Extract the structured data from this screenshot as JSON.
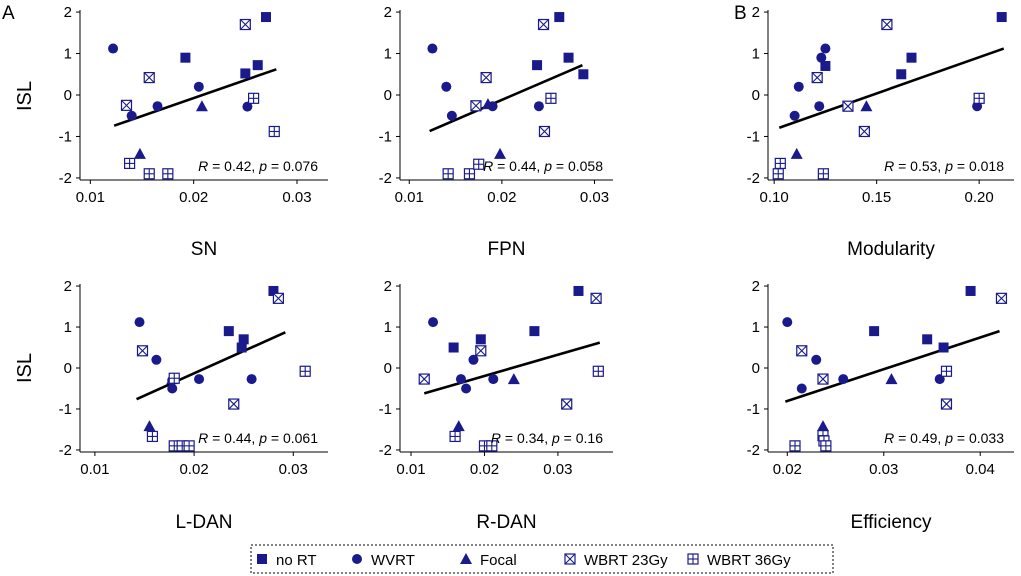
{
  "colors": {
    "marker": "#1a1a8c",
    "line": "#000000"
  },
  "legend": {
    "items": [
      {
        "label": "no RT",
        "shape": "square"
      },
      {
        "label": "WVRT",
        "shape": "circle"
      },
      {
        "label": "Focal",
        "shape": "triangle"
      },
      {
        "label": "WBRT 23Gy",
        "shape": "boxx"
      },
      {
        "label": "WBRT 36Gy",
        "shape": "boxplus"
      }
    ]
  },
  "panel_letters": [
    "A",
    "B"
  ],
  "chart_data": [
    {
      "type": "scatter",
      "title": "",
      "xlabel": "SN",
      "ylabel": "ISL",
      "xlim": [
        0.009,
        0.033
      ],
      "ylim": [
        -2.05,
        2.05
      ],
      "xticks": [
        0.01,
        0.02,
        0.03
      ],
      "xtick_labels": [
        "0.01",
        "0.02",
        "0.03"
      ],
      "yticks": [
        -2,
        -1,
        0,
        1,
        2
      ],
      "ytick_labels": [
        "-2",
        "-1",
        "0",
        "1",
        "2"
      ],
      "stat_r": "0.42",
      "stat_p": "0.076",
      "stat_rest": ", p = 0.076",
      "fit": {
        "x": [
          0.0123,
          0.028
        ],
        "y": [
          -0.74,
          0.62
        ]
      },
      "series": [
        {
          "name": "no RT",
          "x": [
            0.0192,
            0.027,
            0.0262,
            0.025
          ],
          "y": [
            0.9,
            1.88,
            0.72,
            0.52
          ]
        },
        {
          "name": "WVRT",
          "x": [
            0.0122,
            0.014,
            0.0165,
            0.0205,
            0.0252
          ],
          "y": [
            1.12,
            -0.5,
            -0.27,
            0.2,
            -0.28
          ]
        },
        {
          "name": "Focal",
          "x": [
            0.0148,
            0.0208
          ],
          "y": [
            -1.42,
            -0.27
          ]
        },
        {
          "name": "WBRT 23Gy",
          "x": [
            0.0135,
            0.0157,
            0.025
          ],
          "y": [
            -0.25,
            0.42,
            1.7
          ]
        },
        {
          "name": "WBRT 36Gy",
          "x": [
            0.0138,
            0.0157,
            0.0175,
            0.0258,
            0.0278
          ],
          "y": [
            -1.65,
            -1.9,
            -1.9,
            -0.08,
            -0.88
          ]
        }
      ]
    },
    {
      "type": "scatter",
      "title": "",
      "xlabel": "FPN",
      "ylabel": "",
      "xlim": [
        0.009,
        0.032
      ],
      "ylim": [
        -2.05,
        2.05
      ],
      "xticks": [
        0.01,
        0.02,
        0.03
      ],
      "xtick_labels": [
        "0.01",
        "0.02",
        "0.03"
      ],
      "yticks": [
        -2,
        -1,
        0,
        1,
        2
      ],
      "ytick_labels": [
        "-2",
        "-1",
        "0",
        "1",
        "2"
      ],
      "stat_r": "0.44",
      "stat_p": "0.058",
      "stat_rest": ", p = 0.058",
      "fit": {
        "x": [
          0.0122,
          0.0287
        ],
        "y": [
          -0.87,
          0.72
        ]
      },
      "series": [
        {
          "name": "no RT",
          "x": [
            0.0238,
            0.0262,
            0.0272,
            0.0288
          ],
          "y": [
            0.72,
            1.88,
            0.9,
            0.5
          ]
        },
        {
          "name": "WVRT",
          "x": [
            0.0125,
            0.014,
            0.0146,
            0.019,
            0.024
          ],
          "y": [
            1.12,
            0.2,
            -0.5,
            -0.27,
            -0.27
          ]
        },
        {
          "name": "Focal",
          "x": [
            0.0185,
            0.0198
          ],
          "y": [
            -0.22,
            -1.42
          ]
        },
        {
          "name": "WBRT 23Gy",
          "x": [
            0.0172,
            0.0183,
            0.0245,
            0.0246
          ],
          "y": [
            -0.26,
            0.42,
            1.7,
            -0.88
          ]
        },
        {
          "name": "WBRT 36Gy",
          "x": [
            0.0142,
            0.0165,
            0.0175,
            0.0253
          ],
          "y": [
            -1.9,
            -1.9,
            -1.67,
            -0.08
          ]
        }
      ]
    },
    {
      "type": "scatter",
      "title": "",
      "xlabel": "Modularity",
      "ylabel": "",
      "xlim": [
        0.097,
        0.217
      ],
      "ylim": [
        -2.05,
        2.05
      ],
      "xticks": [
        0.1,
        0.15,
        0.2
      ],
      "xtick_labels": [
        "0.10",
        "0.15",
        "0.20"
      ],
      "yticks": [
        -2,
        -1,
        0,
        1,
        2
      ],
      "ytick_labels": [
        "-2",
        "-1",
        "0",
        "1",
        "2"
      ],
      "stat_r": "0.53",
      "stat_p": "0.018",
      "stat_rest": ", p = 0.018",
      "fit": {
        "x": [
          0.1025,
          0.212
        ],
        "y": [
          -0.79,
          1.12
        ]
      },
      "series": [
        {
          "name": "no RT",
          "x": [
            0.125,
            0.162,
            0.167,
            0.211
          ],
          "y": [
            0.7,
            0.5,
            0.9,
            1.88
          ]
        },
        {
          "name": "WVRT",
          "x": [
            0.11,
            0.112,
            0.122,
            0.123,
            0.125,
            0.199
          ],
          "y": [
            -0.5,
            0.2,
            -0.27,
            0.9,
            1.12,
            -0.27
          ]
        },
        {
          "name": "Focal",
          "x": [
            0.111,
            0.145
          ],
          "y": [
            -1.42,
            -0.27
          ]
        },
        {
          "name": "WBRT 23Gy",
          "x": [
            0.121,
            0.136,
            0.144,
            0.155
          ],
          "y": [
            0.42,
            -0.27,
            -0.88,
            1.7
          ]
        },
        {
          "name": "WBRT 36Gy",
          "x": [
            0.102,
            0.103,
            0.124,
            0.2
          ],
          "y": [
            -1.9,
            -1.65,
            -1.9,
            -0.08
          ]
        }
      ]
    },
    {
      "type": "scatter",
      "title": "",
      "xlabel": "L-DAN",
      "ylabel": "ISL",
      "xlim": [
        0.0085,
        0.0335
      ],
      "ylim": [
        -2.05,
        2.05
      ],
      "xticks": [
        0.01,
        0.02,
        0.03
      ],
      "xtick_labels": [
        "0.01",
        "0.02",
        "0.03"
      ],
      "yticks": [
        -2,
        -1,
        0,
        1,
        2
      ],
      "ytick_labels": [
        "-2",
        "-1",
        "0",
        "1",
        "2"
      ],
      "stat_r": "0.44",
      "stat_p": "0.061",
      "stat_rest": ", p = 0.061",
      "fit": {
        "x": [
          0.0142,
          0.0292
        ],
        "y": [
          -0.76,
          0.87
        ]
      },
      "series": [
        {
          "name": "no RT",
          "x": [
            0.0235,
            0.025,
            0.0248,
            0.028
          ],
          "y": [
            0.9,
            0.7,
            0.5,
            1.88
          ]
        },
        {
          "name": "WVRT",
          "x": [
            0.0145,
            0.0162,
            0.0178,
            0.0178,
            0.0205,
            0.0258
          ],
          "y": [
            1.12,
            0.2,
            -0.5,
            -0.3,
            -0.27,
            -0.27
          ]
        },
        {
          "name": "Focal",
          "x": [
            0.0155,
            0.0178
          ],
          "y": [
            -1.42,
            -0.27
          ]
        },
        {
          "name": "WBRT 23Gy",
          "x": [
            0.0148,
            0.024,
            0.0285
          ],
          "y": [
            0.42,
            -0.88,
            1.7
          ]
        },
        {
          "name": "WBRT 36Gy",
          "x": [
            0.0158,
            0.018,
            0.0188,
            0.0195,
            0.018,
            0.0312
          ],
          "y": [
            -1.67,
            -1.9,
            -1.9,
            -1.9,
            -0.25,
            -0.08
          ]
        }
      ]
    },
    {
      "type": "scatter",
      "title": "",
      "xlabel": "R-DAN",
      "ylabel": "",
      "xlim": [
        0.0085,
        0.0375
      ],
      "ylim": [
        -2.05,
        2.05
      ],
      "xticks": [
        0.01,
        0.02,
        0.03
      ],
      "xtick_labels": [
        "0.01",
        "0.02",
        "0.03"
      ],
      "yticks": [
        -2,
        -1,
        0,
        1,
        2
      ],
      "ytick_labels": [
        "-2",
        "-1",
        "0",
        "1",
        "2"
      ],
      "stat_r": "0.34",
      "stat_p": "0.16",
      "stat_rest": ", p = 0.16",
      "fit": {
        "x": [
          0.0118,
          0.0357
        ],
        "y": [
          -0.62,
          0.62
        ]
      },
      "series": [
        {
          "name": "no RT",
          "x": [
            0.0158,
            0.0195,
            0.0268,
            0.0328
          ],
          "y": [
            0.5,
            0.7,
            0.9,
            1.88
          ]
        },
        {
          "name": "WVRT",
          "x": [
            0.013,
            0.0168,
            0.0175,
            0.0185,
            0.0212
          ],
          "y": [
            1.12,
            -0.27,
            -0.5,
            0.2,
            -0.27
          ]
        },
        {
          "name": "Focal",
          "x": [
            0.0165,
            0.024
          ],
          "y": [
            -1.42,
            -0.27
          ]
        },
        {
          "name": "WBRT 23Gy",
          "x": [
            0.0118,
            0.0195,
            0.0312,
            0.0352
          ],
          "y": [
            -0.27,
            0.42,
            -0.88,
            1.7
          ]
        },
        {
          "name": "WBRT 36Gy",
          "x": [
            0.016,
            0.02,
            0.021,
            0.0355
          ],
          "y": [
            -1.67,
            -1.9,
            -1.9,
            -0.08
          ]
        }
      ]
    },
    {
      "type": "scatter",
      "title": "",
      "xlabel": "Efficiency",
      "ylabel": "",
      "xlim": [
        0.018,
        0.0435
      ],
      "ylim": [
        -2.05,
        2.05
      ],
      "xticks": [
        0.02,
        0.03,
        0.04
      ],
      "xtick_labels": [
        "0.02",
        "0.03",
        "0.04"
      ],
      "yticks": [
        -2,
        -1,
        0,
        1,
        2
      ],
      "ytick_labels": [
        "-2",
        "-1",
        "0",
        "1",
        "2"
      ],
      "stat_r": "0.49",
      "stat_p": "0.033",
      "stat_rest": ", p = 0.033",
      "fit": {
        "x": [
          0.0198,
          0.042
        ],
        "y": [
          -0.82,
          0.9
        ]
      },
      "series": [
        {
          "name": "no RT",
          "x": [
            0.029,
            0.0345,
            0.0362,
            0.039
          ],
          "y": [
            0.9,
            0.7,
            0.5,
            1.88
          ]
        },
        {
          "name": "WVRT",
          "x": [
            0.02,
            0.0215,
            0.023,
            0.0258,
            0.0358
          ],
          "y": [
            1.12,
            -0.5,
            0.2,
            -0.27,
            -0.27
          ]
        },
        {
          "name": "Focal",
          "x": [
            0.0237,
            0.0308
          ],
          "y": [
            -1.42,
            -0.27
          ]
        },
        {
          "name": "WBRT 23Gy",
          "x": [
            0.0215,
            0.0237,
            0.0365,
            0.0422
          ],
          "y": [
            0.42,
            -0.27,
            -0.88,
            1.7
          ]
        },
        {
          "name": "WBRT 36Gy",
          "x": [
            0.0208,
            0.0237,
            0.0238,
            0.024,
            0.0365
          ],
          "y": [
            -1.9,
            -1.65,
            -1.78,
            -1.9,
            -0.08
          ]
        }
      ]
    }
  ]
}
